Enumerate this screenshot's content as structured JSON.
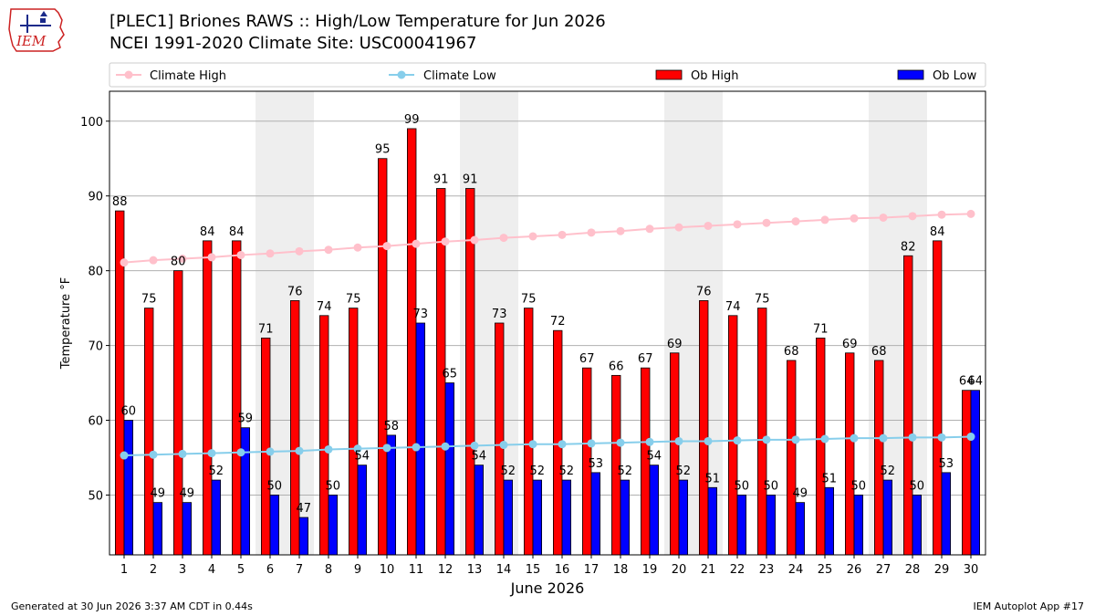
{
  "header": {
    "title_line1": "[PLEC1] Briones RAWS :: High/Low Temperature for Jun 2026",
    "title_line2": "NCEI 1991-2020 Climate Site: USC00041967",
    "logo_text": "IEM"
  },
  "footer": {
    "generated": "Generated at 30 Jun 2026 3:37 AM CDT in 0.44s",
    "app": "IEM Autoplot App #17"
  },
  "colors": {
    "ob_high": "#ff0000",
    "ob_low": "#0000ff",
    "climate_high": "#ffc0cb",
    "climate_low": "#87ceeb",
    "weekend_band": "#eeeeee",
    "grid": "#b0b0b0"
  },
  "chart_data": {
    "type": "bar",
    "xlabel": "June 2026",
    "ylabel": "Temperature °F",
    "ylim": [
      42,
      104
    ],
    "yticks": [
      50,
      60,
      70,
      80,
      90,
      100
    ],
    "grid": "horizontal",
    "legend_position": "top",
    "categories": [
      1,
      2,
      3,
      4,
      5,
      6,
      7,
      8,
      9,
      10,
      11,
      12,
      13,
      14,
      15,
      16,
      17,
      18,
      19,
      20,
      21,
      22,
      23,
      24,
      25,
      26,
      27,
      28,
      29,
      30
    ],
    "shaded_days": [
      6,
      7,
      13,
      14,
      20,
      21,
      27,
      28
    ],
    "series": [
      {
        "name": "Ob High",
        "kind": "bar",
        "values": [
          88,
          75,
          80,
          84,
          84,
          71,
          76,
          74,
          75,
          95,
          99,
          91,
          91,
          73,
          75,
          72,
          67,
          66,
          67,
          69,
          76,
          74,
          75,
          68,
          71,
          69,
          68,
          82,
          84,
          64
        ]
      },
      {
        "name": "Ob Low",
        "kind": "bar",
        "values": [
          60,
          49,
          49,
          52,
          59,
          50,
          47,
          50,
          54,
          58,
          73,
          65,
          54,
          52,
          52,
          52,
          53,
          52,
          54,
          52,
          51,
          50,
          50,
          49,
          51,
          50,
          52,
          50,
          53,
          64
        ]
      },
      {
        "name": "Climate High",
        "kind": "line",
        "values": [
          81.1,
          81.4,
          81.6,
          81.8,
          82.1,
          82.3,
          82.6,
          82.8,
          83.1,
          83.3,
          83.6,
          83.9,
          84.1,
          84.4,
          84.6,
          84.8,
          85.1,
          85.3,
          85.6,
          85.8,
          86.0,
          86.2,
          86.4,
          86.6,
          86.8,
          87.0,
          87.1,
          87.3,
          87.5,
          87.6
        ]
      },
      {
        "name": "Climate Low",
        "kind": "line",
        "values": [
          55.3,
          55.4,
          55.5,
          55.6,
          55.7,
          55.8,
          55.9,
          56.1,
          56.2,
          56.3,
          56.4,
          56.5,
          56.6,
          56.7,
          56.8,
          56.8,
          56.9,
          57.0,
          57.1,
          57.2,
          57.2,
          57.3,
          57.4,
          57.4,
          57.5,
          57.6,
          57.6,
          57.7,
          57.7,
          57.8
        ]
      }
    ]
  }
}
